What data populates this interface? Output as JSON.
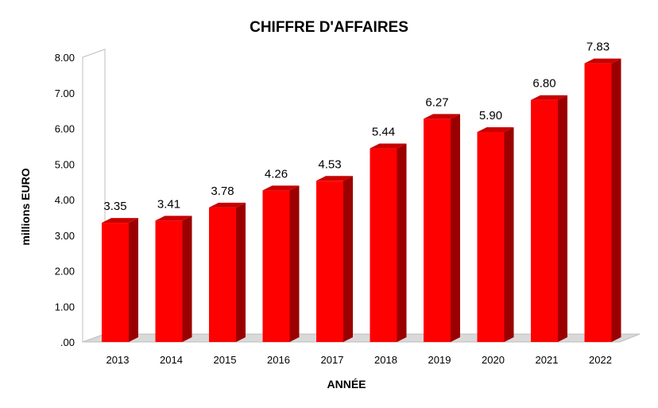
{
  "chart_data": {
    "type": "bar",
    "title": "CHIFFRE D'AFFAIRES",
    "xlabel": "ANNÉE",
    "ylabel": "millions EURO",
    "categories": [
      "2013",
      "2014",
      "2015",
      "2016",
      "2017",
      "2018",
      "2019",
      "2020",
      "2021",
      "2022"
    ],
    "values": [
      3.35,
      3.41,
      3.78,
      4.26,
      4.53,
      5.44,
      6.27,
      5.9,
      6.8,
      7.83
    ],
    "value_labels": [
      "3.35",
      "3.41",
      "3.78",
      "4.26",
      "4.53",
      "5.44",
      "6.27",
      "5.90",
      "6.80",
      "7.83"
    ],
    "ylim": [
      0,
      8
    ],
    "yticks": [
      ".00",
      "1.00",
      "2.00",
      "3.00",
      "4.00",
      "5.00",
      "6.00",
      "7.00",
      "8.00"
    ],
    "grid": false,
    "legend": "none",
    "style": "3d-column",
    "colors": {
      "bar_front": "#ff0000",
      "bar_side": "#9b0000",
      "bar_top": "#c80000",
      "floor": "#d9d9d9",
      "wall_edge": "#bfbfbf"
    }
  }
}
